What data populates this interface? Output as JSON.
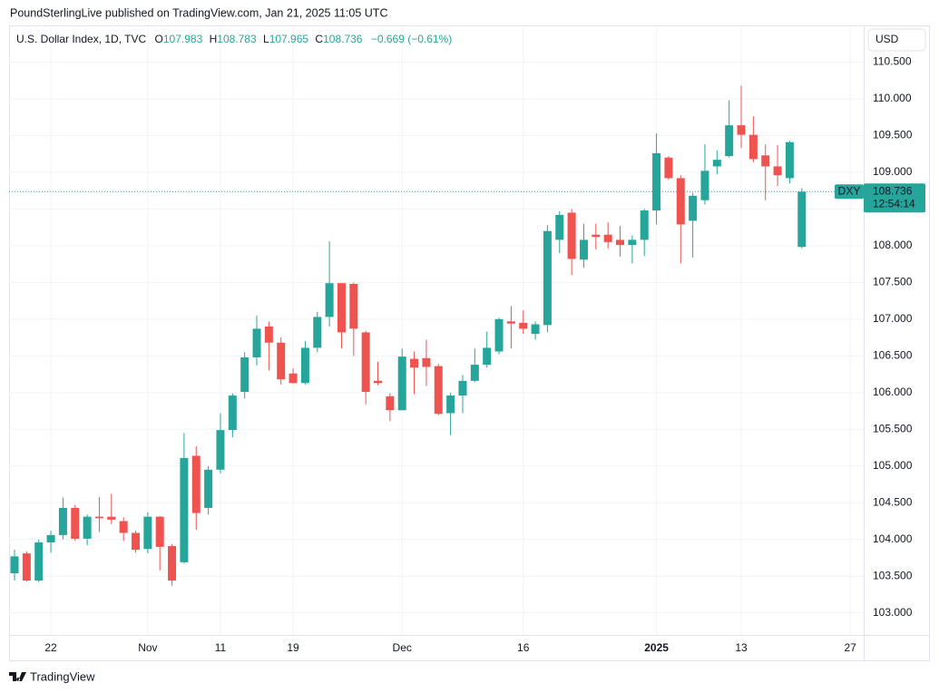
{
  "header": "PoundSterlingLive published on TradingView.com, Jan 21, 2025 11:05 UTC",
  "footer": "TradingView",
  "currency_button": "USD",
  "chart_data": {
    "type": "candlestick",
    "legend": {
      "symbol": "U.S. Dollar Index, 1D, TVC",
      "ohlc": [
        {
          "label": "O",
          "value": "107.983"
        },
        {
          "label": "H",
          "value": "108.783"
        },
        {
          "label": "L",
          "value": "107.965"
        },
        {
          "label": "C",
          "value": "108.736"
        }
      ],
      "change": "−0.669 (−0.61%)"
    },
    "last_price": {
      "ticker": "DXY",
      "value": 108.736,
      "label": "108.736",
      "countdown": "12:54:14"
    },
    "up_color": "#26a69a",
    "down_color": "#ef5350",
    "open": [
      103.54,
      103.81,
      103.44,
      103.96,
      104.06,
      104.43,
      104.01,
      104.31,
      104.31,
      104.25,
      104.09,
      103.87,
      104.31,
      103.91,
      103.69,
      105.14,
      104.43,
      104.95,
      105.49,
      106.01,
      106.48,
      106.9,
      106.68,
      106.26,
      106.13,
      106.61,
      107.03,
      107.49,
      107.48,
      106.82,
      106.16,
      105.95,
      105.76,
      106.46,
      106.47,
      106.36,
      105.72,
      105.96,
      106.16,
      106.38,
      106.56,
      106.97,
      106.95,
      106.8,
      106.92,
      108.08,
      108.45,
      107.81,
      108.15,
      108.15,
      108.08,
      108.01,
      108.08,
      108.48,
      109.2,
      108.92,
      108.34,
      108.62,
      109.08,
      109.22,
      109.64,
      109.51,
      109.23,
      109.08,
      108.92,
      107.983
    ],
    "high": [
      103.86,
      103.84,
      104.0,
      104.12,
      104.57,
      104.47,
      104.34,
      104.58,
      104.62,
      104.3,
      104.12,
      104.37,
      104.32,
      103.94,
      105.45,
      105.27,
      105.0,
      105.72,
      105.99,
      106.55,
      107.05,
      106.97,
      106.75,
      106.33,
      106.7,
      107.1,
      108.06,
      107.49,
      107.5,
      106.84,
      106.42,
      105.99,
      106.6,
      106.56,
      106.72,
      106.39,
      106.0,
      106.24,
      106.6,
      106.83,
      107.02,
      107.18,
      107.12,
      106.97,
      108.28,
      108.47,
      108.5,
      108.3,
      108.3,
      108.32,
      108.27,
      108.14,
      108.5,
      109.53,
      109.22,
      108.96,
      108.72,
      109.38,
      109.3,
      109.98,
      110.18,
      109.76,
      109.38,
      109.37,
      109.43,
      108.783
    ],
    "low": [
      103.44,
      103.43,
      103.42,
      103.82,
      104.0,
      103.98,
      103.92,
      104.1,
      104.21,
      103.98,
      103.82,
      103.81,
      103.58,
      103.37,
      103.67,
      104.13,
      104.34,
      104.9,
      105.39,
      105.92,
      106.37,
      106.3,
      106.11,
      106.12,
      106.11,
      106.55,
      106.9,
      106.6,
      106.5,
      105.84,
      106.1,
      105.61,
      105.76,
      105.98,
      106.09,
      105.69,
      105.42,
      105.72,
      106.14,
      106.34,
      106.52,
      106.6,
      106.8,
      106.72,
      106.82,
      107.9,
      107.6,
      107.7,
      107.95,
      107.96,
      107.85,
      107.76,
      107.86,
      108.29,
      108.9,
      107.76,
      107.84,
      108.56,
      108.97,
      109.2,
      109.33,
      109.14,
      108.62,
      108.81,
      108.85,
      107.965
    ],
    "close": [
      103.77,
      103.44,
      103.96,
      104.06,
      104.43,
      104.01,
      104.31,
      104.29,
      104.27,
      104.09,
      103.86,
      104.31,
      103.9,
      103.44,
      105.11,
      104.36,
      104.95,
      105.49,
      105.96,
      106.48,
      106.87,
      106.68,
      106.18,
      106.13,
      106.61,
      107.03,
      107.49,
      106.82,
      106.87,
      106.01,
      106.13,
      105.76,
      106.49,
      106.34,
      106.35,
      105.71,
      105.96,
      106.16,
      106.38,
      106.61,
      107.0,
      106.94,
      106.87,
      106.93,
      108.2,
      108.42,
      107.82,
      108.08,
      108.12,
      108.05,
      108.01,
      108.08,
      108.48,
      109.26,
      108.92,
      108.29,
      108.68,
      109.02,
      109.17,
      109.64,
      109.51,
      109.18,
      109.08,
      108.96,
      109.41,
      108.736
    ],
    "xlim": [
      -0.45,
      70.11
    ],
    "xticks": [
      {
        "value": 3,
        "label": "22"
      },
      {
        "value": 11,
        "label": "Nov"
      },
      {
        "value": 17,
        "label": "11"
      },
      {
        "value": 23,
        "label": "19"
      },
      {
        "value": 32,
        "label": "Dec"
      },
      {
        "value": 42,
        "label": "16"
      },
      {
        "value": 53,
        "label": "2025"
      },
      {
        "value": 60,
        "label": "13"
      },
      {
        "value": 69,
        "label": "27"
      }
    ],
    "bold_xtick": "2025",
    "ylim": [
      102.7,
      111.0
    ],
    "yticks": [
      {
        "value": 103,
        "label": "103.000"
      },
      {
        "value": 103.5,
        "label": "103.500"
      },
      {
        "value": 104,
        "label": "104.000"
      },
      {
        "value": 104.5,
        "label": "104.500"
      },
      {
        "value": 105,
        "label": "105.000"
      },
      {
        "value": 105.5,
        "label": "105.500"
      },
      {
        "value": 106,
        "label": "106.000"
      },
      {
        "value": 106.5,
        "label": "106.500"
      },
      {
        "value": 107,
        "label": "107.000"
      },
      {
        "value": 107.5,
        "label": "107.500"
      },
      {
        "value": 108,
        "label": "108.000"
      },
      {
        "value": 108.5,
        "label": "108.500"
      },
      {
        "value": 109,
        "label": "109.000"
      },
      {
        "value": 109.5,
        "label": "109.500"
      },
      {
        "value": 110,
        "label": "110.000"
      },
      {
        "value": 110.5,
        "label": "110.500"
      }
    ],
    "grid": true
  }
}
